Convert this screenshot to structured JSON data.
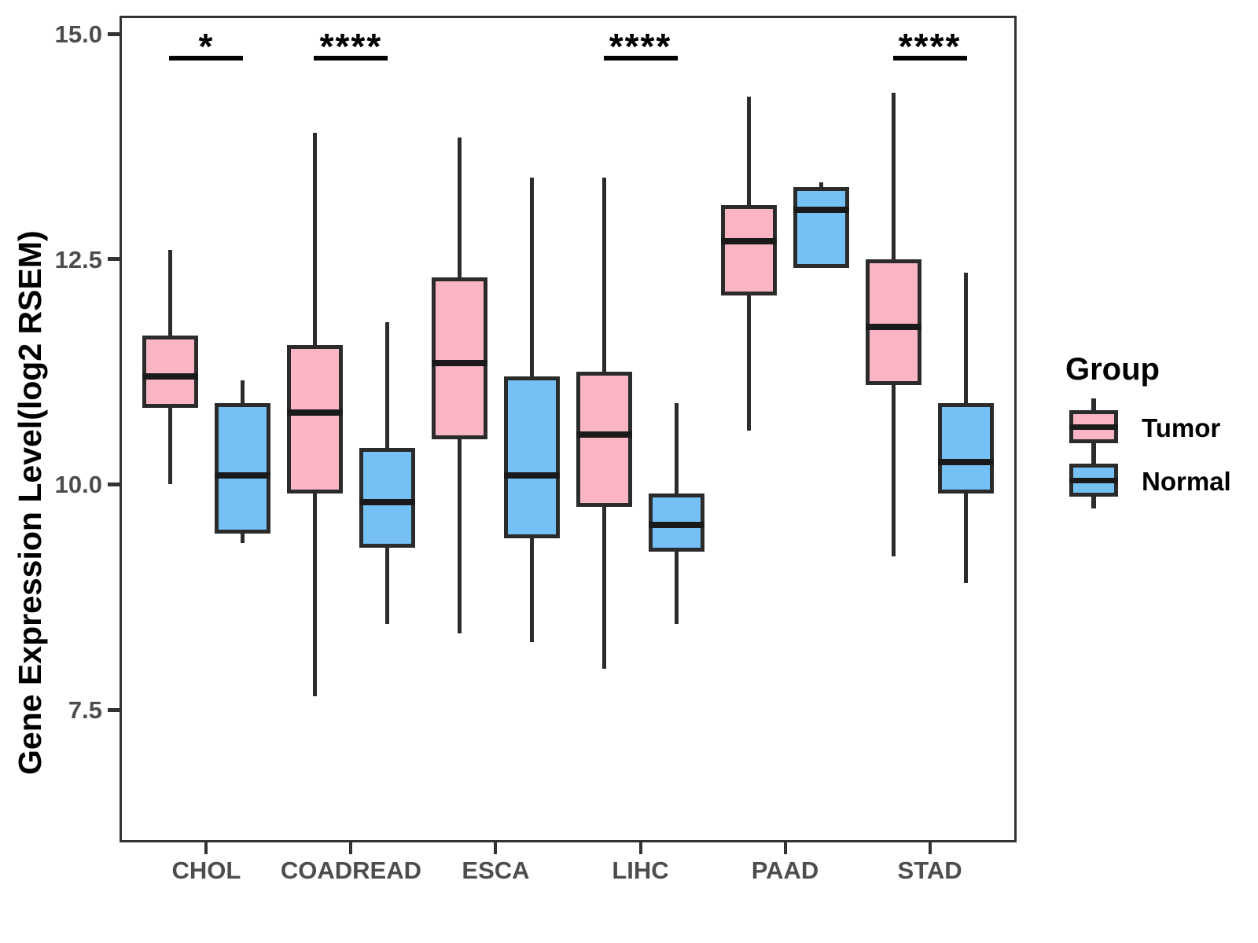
{
  "chart_data": {
    "type": "boxplot",
    "title": "",
    "xlabel": "",
    "ylabel": "Gene Expression Level(log2 RSEM)",
    "ylim": [
      6.0,
      15.2
    ],
    "y_ticks": [
      "15.0",
      "12.5",
      "10.0",
      "7.5"
    ],
    "y_tick_values": [
      15.0,
      12.5,
      10.0,
      7.5
    ],
    "grid": "off",
    "categories": [
      "CHOL",
      "COADREAD",
      "ESCA",
      "LIHC",
      "PAAD",
      "STAD"
    ],
    "series": [
      {
        "name": "Tumor",
        "color": "#FAB5C5",
        "boxes": [
          {
            "category": "CHOL",
            "min": 10.0,
            "q1": 10.85,
            "median": 11.2,
            "q3": 11.65,
            "max": 12.6
          },
          {
            "category": "COADREAD",
            "min": 7.65,
            "q1": 9.9,
            "median": 10.8,
            "q3": 11.55,
            "max": 13.9
          },
          {
            "category": "ESCA",
            "min": 8.35,
            "q1": 10.5,
            "median": 11.35,
            "q3": 12.3,
            "max": 13.85
          },
          {
            "category": "LIHC",
            "min": 7.95,
            "q1": 9.75,
            "median": 10.55,
            "q3": 11.25,
            "max": 13.4
          },
          {
            "category": "PAAD",
            "min": 10.6,
            "q1": 12.1,
            "median": 12.7,
            "q3": 13.1,
            "max": 14.3
          },
          {
            "category": "STAD",
            "min": 9.2,
            "q1": 11.1,
            "median": 11.75,
            "q3": 12.5,
            "max": 14.35
          }
        ]
      },
      {
        "name": "Normal",
        "color": "#75C0F4",
        "boxes": [
          {
            "category": "CHOL",
            "min": 9.35,
            "q1": 9.45,
            "median": 10.1,
            "q3": 10.9,
            "max": 11.15
          },
          {
            "category": "COADREAD",
            "min": 8.45,
            "q1": 9.3,
            "median": 9.8,
            "q3": 10.4,
            "max": 11.8
          },
          {
            "category": "ESCA",
            "min": 8.25,
            "q1": 9.4,
            "median": 10.1,
            "q3": 11.2,
            "max": 13.4
          },
          {
            "category": "LIHC",
            "min": 8.45,
            "q1": 9.25,
            "median": 9.55,
            "q3": 9.9,
            "max": 10.9
          },
          {
            "category": "PAAD",
            "min": 12.4,
            "q1": 12.4,
            "median": 13.05,
            "q3": 13.3,
            "max": 13.35
          },
          {
            "category": "STAD",
            "min": 8.9,
            "q1": 9.9,
            "median": 10.25,
            "q3": 10.9,
            "max": 12.35
          }
        ]
      }
    ],
    "significance": [
      {
        "category": "CHOL",
        "label": "*"
      },
      {
        "category": "COADREAD",
        "label": "****"
      },
      {
        "category": "LIHC",
        "label": "****"
      },
      {
        "category": "STAD",
        "label": "****"
      }
    ],
    "legend": {
      "title": "Group",
      "position": "right",
      "entries": [
        {
          "label": "Tumor",
          "color": "#FAB5C5"
        },
        {
          "label": "Normal",
          "color": "#75C0F4"
        }
      ]
    }
  },
  "colors": {
    "tumor_fill": "#FAB5C5",
    "normal_fill": "#75C0F4",
    "box_border": "#2b2b2b",
    "median_line": "#1a1a1a",
    "panel_border": "#333333",
    "tick_text": "#4d4d4d",
    "title_text": "#000000",
    "background": "#ffffff"
  }
}
